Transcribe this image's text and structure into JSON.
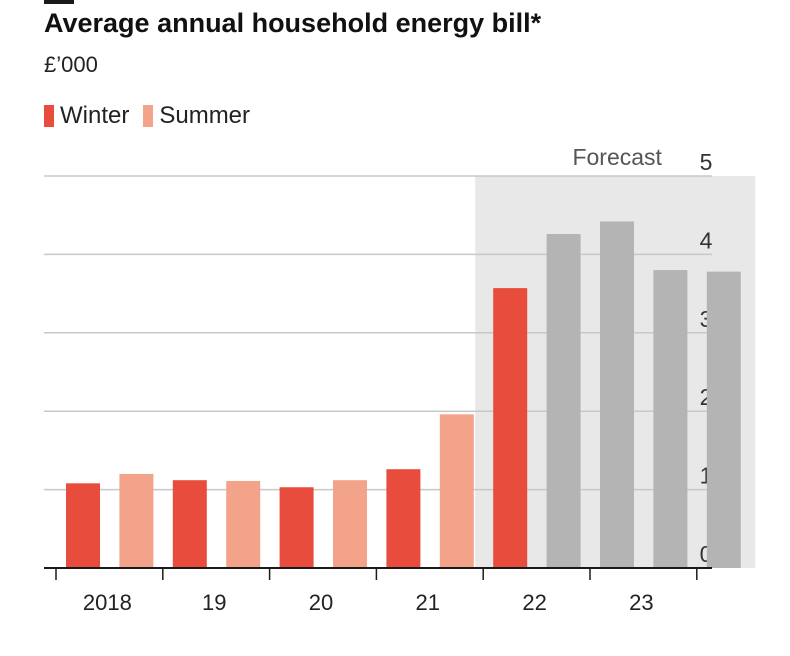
{
  "header": {
    "title": "Average annual household energy bill*",
    "subtitle": "£’000"
  },
  "legend": {
    "winter": {
      "label": "Winter",
      "color": "#e84c3d"
    },
    "summer": {
      "label": "Summer",
      "color": "#f4a38b"
    }
  },
  "forecast_label": "Forecast",
  "colors": {
    "winter": "#e84c3d",
    "summer": "#f4a38b",
    "forecast_bar": "#b4b4b4",
    "forecast_band": "#e8e8e8",
    "grid": "#c8c8c8",
    "axis": "#1a1a1a"
  },
  "chart_data": {
    "type": "bar",
    "title": "Average annual household energy bill*",
    "ylabel": "£’000",
    "ylim": [
      0,
      5
    ],
    "yticks": [
      "0",
      "1",
      "2",
      "3",
      "4",
      "5"
    ],
    "x_labels": [
      "2018",
      "19",
      "20",
      "21",
      "22",
      "23"
    ],
    "forecast_start_index": 8,
    "bars": [
      {
        "season": "winter",
        "value": 1.08
      },
      {
        "season": "summer",
        "value": 1.2
      },
      {
        "season": "winter",
        "value": 1.12
      },
      {
        "season": "summer",
        "value": 1.11
      },
      {
        "season": "winter",
        "value": 1.03
      },
      {
        "season": "summer",
        "value": 1.12
      },
      {
        "season": "winter",
        "value": 1.26
      },
      {
        "season": "summer",
        "value": 1.96
      },
      {
        "season": "winter",
        "value": 3.57
      },
      {
        "season": "forecast",
        "value": 4.26
      },
      {
        "season": "forecast",
        "value": 4.42
      },
      {
        "season": "forecast",
        "value": 3.8
      },
      {
        "season": "forecast",
        "value": 3.78
      }
    ]
  }
}
